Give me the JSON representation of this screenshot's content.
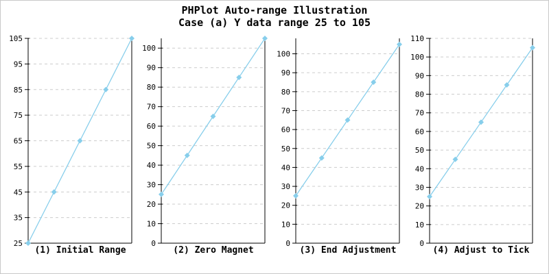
{
  "chart": {
    "title": "PHPlot Auto-range Illustration",
    "subtitle": "Case (a) Y data range 25 to 105"
  },
  "colors": {
    "line": "#87CEEB",
    "marker": "#87CEEB",
    "grid": "#cccccc",
    "axis": "#000000",
    "text": "#000000",
    "frame_border": "#c8c8c8"
  },
  "chart_data": [
    {
      "type": "line",
      "title": "(1) Initial Range",
      "x": [
        0,
        1,
        2,
        3,
        4
      ],
      "y": [
        25,
        45,
        65,
        85,
        105
      ],
      "ylim": [
        25,
        105
      ],
      "yticks": [
        25,
        35,
        45,
        55,
        65,
        75,
        85,
        95,
        105
      ],
      "grid": "horizontal-dashed",
      "marker": "diamond",
      "legend_position": "none"
    },
    {
      "type": "line",
      "title": "(2) Zero Magnet",
      "x": [
        0,
        1,
        2,
        3,
        4
      ],
      "y": [
        25,
        45,
        65,
        85,
        105
      ],
      "ylim": [
        0,
        105
      ],
      "yticks": [
        0,
        10,
        20,
        30,
        40,
        50,
        60,
        70,
        80,
        90,
        100
      ],
      "grid": "horizontal-dashed",
      "marker": "diamond",
      "legend_position": "none"
    },
    {
      "type": "line",
      "title": "(3) End Adjustment",
      "x": [
        0,
        1,
        2,
        3,
        4
      ],
      "y": [
        25,
        45,
        65,
        85,
        105
      ],
      "ylim": [
        0,
        108.15
      ],
      "yticks": [
        0,
        10,
        20,
        30,
        40,
        50,
        60,
        70,
        80,
        90,
        100
      ],
      "grid": "horizontal-dashed",
      "marker": "diamond",
      "legend_position": "none"
    },
    {
      "type": "line",
      "title": "(4) Adjust to Tick",
      "x": [
        0,
        1,
        2,
        3,
        4
      ],
      "y": [
        25,
        45,
        65,
        85,
        105
      ],
      "ylim": [
        0,
        110
      ],
      "yticks": [
        0,
        10,
        20,
        30,
        40,
        50,
        60,
        70,
        80,
        90,
        100,
        110
      ],
      "grid": "horizontal-dashed",
      "marker": "diamond",
      "legend_position": "none"
    }
  ]
}
